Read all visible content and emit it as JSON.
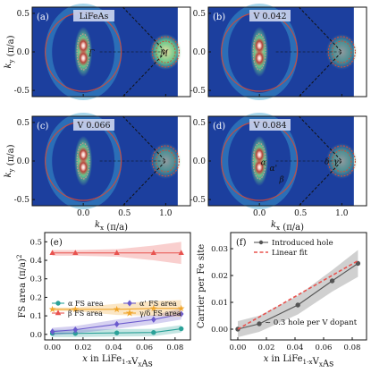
{
  "arpes": {
    "xlabel": "k_x (π/a)",
    "ylabel": "k_y (π/a)",
    "xticks": [
      0.0,
      0.5,
      1.0
    ],
    "yticks": [
      0.5,
      0.0,
      -0.5
    ],
    "panels": [
      {
        "letter": "(a)",
        "tag": "LiFeAs",
        "labels": [
          {
            "text": "Γ",
            "kx": 0.1,
            "ky": -0.05
          },
          {
            "text": "M",
            "kx": 0.98,
            "ky": -0.05
          }
        ]
      },
      {
        "letter": "(b)",
        "tag": "V 0.042",
        "labels": []
      },
      {
        "letter": "(c)",
        "tag": "V 0.066",
        "labels": []
      },
      {
        "letter": "(d)",
        "tag": "V 0.084",
        "labels": [
          {
            "text": "α",
            "kx": 0.05,
            "ky": -0.05
          },
          {
            "text": "α'",
            "kx": 0.17,
            "ky": -0.13
          },
          {
            "text": "β",
            "kx": 0.27,
            "ky": -0.27
          },
          {
            "text": "δ",
            "kx": 0.82,
            "ky": -0.04
          },
          {
            "text": "γ",
            "kx": 0.93,
            "ky": -0.04
          }
        ]
      }
    ]
  },
  "chart_data": [
    {
      "type": "line",
      "panel": "(e)",
      "xlabel": "x in LiFe1-xVxAs",
      "ylabel": "FS area (π/a)²",
      "xticks": [
        0.0,
        0.02,
        0.04,
        0.06,
        0.08
      ],
      "yticks": [
        0.0,
        0.1,
        0.2,
        0.3,
        0.4,
        0.5
      ],
      "xlim": [
        -0.005,
        0.09
      ],
      "ylim": [
        -0.03,
        0.55
      ],
      "x": [
        0.0,
        0.015,
        0.042,
        0.066,
        0.084
      ],
      "series": [
        {
          "name": "α FS area",
          "color": "#2aa198",
          "marker": "circle",
          "values": [
            0.005,
            0.005,
            0.008,
            0.01,
            0.03
          ],
          "band": [
            0.02,
            0.02,
            0.02,
            0.02,
            0.02
          ]
        },
        {
          "name": "α' FS area",
          "color": "#6a5acd",
          "marker": "diamond",
          "values": [
            0.015,
            0.025,
            0.055,
            0.08,
            0.11
          ],
          "band": [
            0.02,
            0.02,
            0.025,
            0.025,
            0.03
          ]
        },
        {
          "name": "β FS area",
          "color": "#e8534f",
          "marker": "triangle",
          "values": [
            0.44,
            0.44,
            0.44,
            0.44,
            0.44
          ],
          "band": [
            0.015,
            0.015,
            0.02,
            0.04,
            0.06
          ]
        },
        {
          "name": "γ/δ FS area",
          "color": "#f0a52a",
          "marker": "star",
          "values": [
            0.135,
            0.135,
            0.135,
            0.14,
            0.14
          ],
          "band": [
            0.01,
            0.01,
            0.03,
            0.04,
            0.045
          ]
        }
      ],
      "legend": "bottom"
    },
    {
      "type": "line",
      "panel": "(f)",
      "xlabel": "x in LiFe1-xVxAs",
      "ylabel": "Carrier per Fe site",
      "xticks": [
        0.0,
        0.02,
        0.04,
        0.06,
        0.08
      ],
      "yticks": [
        0.0,
        0.01,
        0.02,
        0.03
      ],
      "xlim": [
        -0.005,
        0.09
      ],
      "ylim": [
        -0.004,
        0.036
      ],
      "series": [
        {
          "name": "Introduced hole",
          "color": "#555555",
          "marker": "circle",
          "x": [
            0.0,
            0.015,
            0.042,
            0.066,
            0.084
          ],
          "values": [
            0.0,
            0.002,
            0.009,
            0.018,
            0.0245
          ],
          "band": [
            0.003,
            0.003,
            0.0035,
            0.004,
            0.005
          ]
        },
        {
          "name": "Linear fit",
          "color": "#e8534f",
          "style": "dashed",
          "x": [
            0.0,
            0.084
          ],
          "values": [
            0.0,
            0.0255
          ]
        }
      ],
      "annotation": "~ 0.3 hole per V dopant",
      "legend": "top-left"
    }
  ]
}
